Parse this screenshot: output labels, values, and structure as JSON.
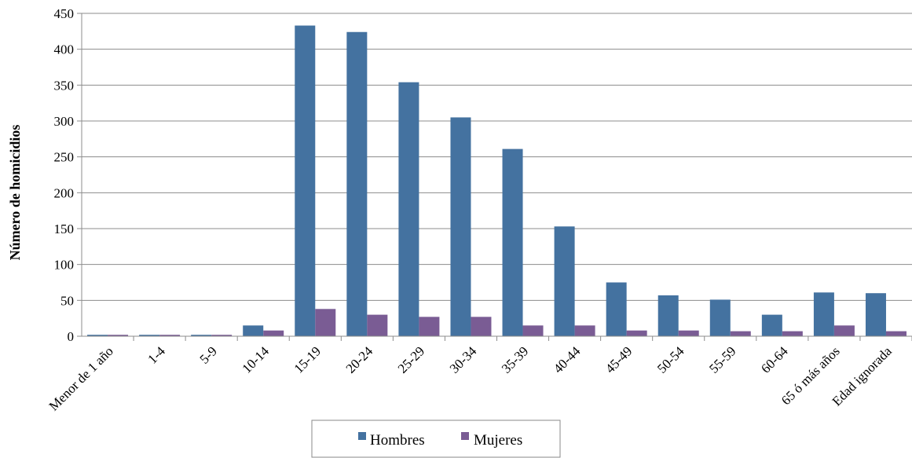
{
  "chart_data": {
    "type": "bar",
    "ylabel": "Número de homicidios",
    "xlabel": "",
    "ylim": [
      0,
      450
    ],
    "yticks": [
      0,
      50,
      100,
      150,
      200,
      250,
      300,
      350,
      400,
      450
    ],
    "grid": true,
    "legend_position": "bottom",
    "categories": [
      "Menor de 1 año",
      "1-4",
      "5-9",
      "10-14",
      "15-19",
      "20-24",
      "25-29",
      "30-34",
      "35-39",
      "40-44",
      "45-49",
      "50-54",
      "55-59",
      "60-64",
      "65 ó más años",
      "Edad ignorada"
    ],
    "series": [
      {
        "name": "Hombres",
        "color": "#4472a0",
        "values": [
          2,
          2,
          2,
          15,
          433,
          424,
          354,
          305,
          261,
          153,
          75,
          57,
          51,
          30,
          61,
          60
        ]
      },
      {
        "name": "Mujeres",
        "color": "#7a5c94",
        "values": [
          2,
          2,
          2,
          8,
          38,
          30,
          27,
          27,
          15,
          15,
          8,
          8,
          7,
          7,
          15,
          7
        ]
      }
    ]
  }
}
